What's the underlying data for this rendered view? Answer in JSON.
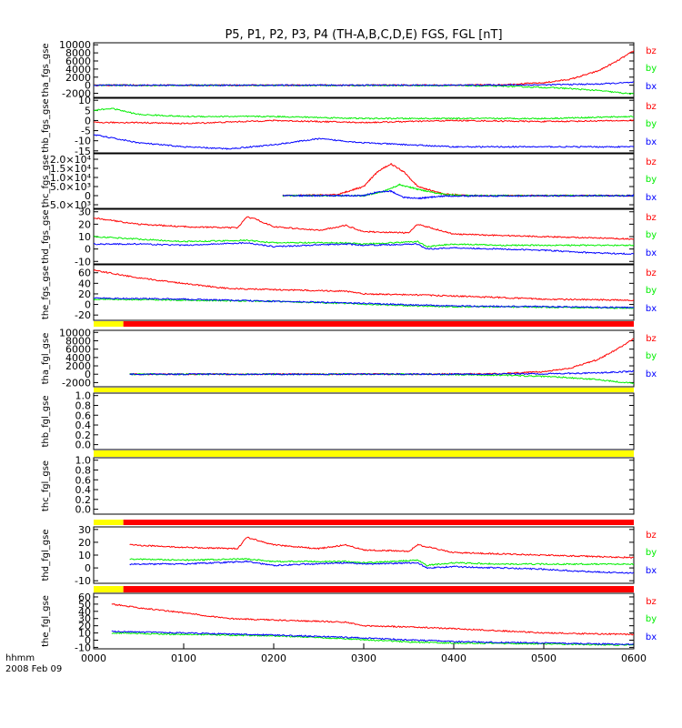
{
  "title": "P5, P1, P2, P3, P4 (TH-A,B,C,D,E) FGS, FGL [nT]",
  "x_axis": {
    "ticks": [
      "0000",
      "0100",
      "0200",
      "0300",
      "0400",
      "0500",
      "0600"
    ],
    "unit_label": "hhmm",
    "date_label": "2008 Feb 09"
  },
  "colors": {
    "bz": "#ff0000",
    "by": "#00ee00",
    "bx": "#0000ff",
    "bt": "#7700aa",
    "flag_yellow": "#ffff00",
    "flag_red": "#ff0000"
  },
  "chart_data": [
    {
      "type": "line",
      "ylabel": "tha_fgs_gse",
      "ylim": [
        -3000,
        10500
      ],
      "yticks": [
        "10000",
        "8000",
        "6000",
        "4000",
        "2000",
        "0",
        "-2000"
      ],
      "legend": [
        "bz",
        "by",
        "bx"
      ],
      "x_start_hours": 0.0,
      "series": [
        {
          "name": "bz",
          "t": [
            0,
            4.0,
            4.5,
            5.0,
            5.3,
            5.6,
            5.8,
            6.0
          ],
          "v": [
            0,
            20,
            120,
            600,
            1500,
            3500,
            5800,
            8500
          ]
        },
        {
          "name": "by",
          "t": [
            0,
            4.0,
            4.6,
            5.2,
            5.6,
            6.0
          ],
          "v": [
            0,
            -60,
            -250,
            -700,
            -1300,
            -2200
          ]
        },
        {
          "name": "bx",
          "t": [
            0,
            4.0,
            5.0,
            5.6,
            6.0
          ],
          "v": [
            0,
            10,
            100,
            300,
            700
          ]
        }
      ]
    },
    {
      "type": "line",
      "ylabel": "thb_fgs_gse",
      "ylim": [
        -16,
        11
      ],
      "yticks": [
        "10",
        "5",
        "0",
        "-5",
        "-10",
        "-15"
      ],
      "legend": [
        "bz",
        "by",
        "bx"
      ],
      "x_start_hours": 0.0,
      "series": [
        {
          "name": "bz",
          "t": [
            0,
            0.5,
            1.0,
            2.0,
            3.0,
            4.0,
            5.0,
            6.0
          ],
          "v": [
            -1,
            -1,
            -1.5,
            0,
            -1,
            0,
            -0.5,
            0
          ]
        },
        {
          "name": "by",
          "t": [
            0,
            0.2,
            0.5,
            1.0,
            2.0,
            3.0,
            4.0,
            5.0,
            6.0
          ],
          "v": [
            5,
            6,
            3,
            2,
            2,
            1,
            1,
            1,
            2
          ]
        },
        {
          "name": "bx",
          "t": [
            0,
            0.5,
            1.0,
            1.5,
            2.0,
            2.5,
            3.0,
            4.0,
            5.0,
            6.0
          ],
          "v": [
            -7,
            -11,
            -13,
            -14,
            -12,
            -9,
            -11,
            -13,
            -13,
            -13
          ]
        }
      ]
    },
    {
      "type": "line",
      "ylabel": "thc_fgs_gse",
      "ylim": [
        -7000,
        23000
      ],
      "yticks": [
        "2.0×10⁴",
        "1.5×10⁴",
        "1.0×10⁴",
        "5.0×10³",
        "0",
        "-5.0×10³"
      ],
      "legend": [
        "bz",
        "by",
        "bx"
      ],
      "x_start_hours": 2.1,
      "series": [
        {
          "name": "bz",
          "t": [
            2.1,
            2.7,
            3.0,
            3.15,
            3.3,
            3.45,
            3.6,
            3.9,
            4.2,
            6.0
          ],
          "v": [
            0,
            500,
            5000,
            13000,
            17500,
            13000,
            5000,
            800,
            0,
            0
          ]
        },
        {
          "name": "by",
          "t": [
            2.1,
            3.0,
            3.2,
            3.4,
            3.6,
            3.9,
            4.2,
            6.0
          ],
          "v": [
            0,
            0,
            2000,
            6000,
            3500,
            600,
            0,
            0
          ]
        },
        {
          "name": "bx",
          "t": [
            2.1,
            3.0,
            3.15,
            3.3,
            3.45,
            3.6,
            3.9,
            6.0
          ],
          "v": [
            0,
            0,
            2000,
            2500,
            -1000,
            -1500,
            -200,
            0
          ]
        }
      ]
    },
    {
      "type": "line",
      "ylabel": "thd_fgs_gse",
      "ylim": [
        -12,
        32
      ],
      "yticks": [
        "30",
        "20",
        "10",
        "0",
        "-10"
      ],
      "legend": [
        "bz",
        "by",
        "bx"
      ],
      "x_start_hours": 0.0,
      "series": [
        {
          "name": "bz",
          "t": [
            0,
            0.5,
            1.0,
            1.6,
            1.7,
            1.8,
            2.0,
            2.5,
            2.8,
            3.0,
            3.5,
            3.6,
            4.0,
            4.5,
            5.0,
            5.5,
            6.0
          ],
          "v": [
            25,
            20,
            18,
            17,
            26,
            24,
            18,
            15,
            19,
            14,
            13,
            20,
            12,
            11,
            10,
            9,
            8
          ]
        },
        {
          "name": "by",
          "t": [
            0,
            0.5,
            1.0,
            1.7,
            2.0,
            2.8,
            3.0,
            3.6,
            3.7,
            4.0,
            4.5,
            5.0,
            6.0
          ],
          "v": [
            10,
            8,
            6,
            7,
            5,
            5,
            4,
            6,
            2,
            4,
            3,
            3,
            3
          ]
        },
        {
          "name": "bx",
          "t": [
            0,
            0.5,
            1.0,
            1.7,
            2.0,
            2.8,
            3.0,
            3.6,
            3.7,
            4.0,
            4.5,
            5.0,
            5.5,
            6.0
          ],
          "v": [
            4,
            4,
            3,
            5,
            2,
            4,
            3,
            4,
            0,
            1,
            0,
            -1,
            -3,
            -4
          ]
        }
      ]
    },
    {
      "type": "line",
      "ylabel": "the_fgs_gse",
      "ylim": [
        -30,
        75
      ],
      "yticks": [
        "60",
        "40",
        "20",
        "0",
        "-20"
      ],
      "legend": [
        "bz",
        "by",
        "bx"
      ],
      "x_start_hours": 0.0,
      "series": [
        {
          "name": "bz",
          "t": [
            0,
            0.5,
            1.0,
            1.5,
            2.0,
            2.8,
            3.0,
            3.6,
            4.0,
            4.7,
            5.0,
            6.0
          ],
          "v": [
            65,
            50,
            40,
            30,
            28,
            25,
            20,
            18,
            16,
            12,
            10,
            8
          ]
        },
        {
          "name": "by",
          "t": [
            0,
            1.0,
            2.0,
            2.8,
            3.6,
            4.0,
            5.0,
            6.0
          ],
          "v": [
            10,
            8,
            6,
            2,
            -3,
            -4,
            -5,
            -7
          ]
        },
        {
          "name": "bx",
          "t": [
            0,
            1.0,
            2.0,
            2.8,
            3.6,
            4.0,
            5.0,
            6.0
          ],
          "v": [
            12,
            10,
            6,
            3,
            -1,
            -3,
            -4,
            -6
          ]
        }
      ]
    },
    {
      "type": "line",
      "ylabel": "tha_fgl_gse",
      "ylim": [
        -3000,
        10500
      ],
      "yticks": [
        "10000",
        "8000",
        "6000",
        "4000",
        "2000",
        "0",
        "-2000"
      ],
      "legend": [
        "bz",
        "by",
        "bx"
      ],
      "x_start_hours": 0.4,
      "series": [
        {
          "name": "bz",
          "t": [
            0.4,
            4.0,
            4.5,
            5.0,
            5.3,
            5.6,
            5.8,
            6.0
          ],
          "v": [
            0,
            20,
            120,
            600,
            1500,
            3500,
            5800,
            8500
          ]
        },
        {
          "name": "by",
          "t": [
            3.6,
            4.6,
            5.2,
            5.6,
            6.0
          ],
          "v": [
            0,
            -250,
            -700,
            -1300,
            -2200
          ]
        },
        {
          "name": "bx",
          "t": [
            3.6,
            5.0,
            5.6,
            6.0
          ],
          "v": [
            0,
            100,
            300,
            700
          ]
        }
      ]
    },
    {
      "type": "line",
      "ylabel": "thb_fgl_gse",
      "ylim": [
        -0.1,
        1.05
      ],
      "yticks": [
        "1.0",
        "0.8",
        "0.6",
        "0.4",
        "0.2",
        "0.0"
      ],
      "legend": [],
      "series": []
    },
    {
      "type": "line",
      "ylabel": "thc_fgl_gse",
      "ylim": [
        -0.1,
        1.05
      ],
      "yticks": [
        "1.0",
        "0.8",
        "0.6",
        "0.4",
        "0.2",
        "0.0"
      ],
      "legend": [],
      "series": []
    },
    {
      "type": "line",
      "ylabel": "thd_fgl_gse",
      "ylim": [
        -12,
        32
      ],
      "yticks": [
        "30",
        "20",
        "10",
        "0",
        "-10"
      ],
      "legend": [
        "bz",
        "by",
        "bx"
      ],
      "x_start_hours": 0.4,
      "series": [
        {
          "name": "bz",
          "t": [
            0.4,
            1.0,
            1.6,
            1.7,
            1.8,
            2.0,
            2.5,
            2.8,
            3.0,
            3.5,
            3.6,
            4.0,
            4.5,
            5.0,
            5.5,
            6.0
          ],
          "v": [
            18,
            16,
            15,
            24,
            22,
            18,
            15,
            18,
            14,
            13,
            18,
            12,
            11,
            10,
            9,
            8
          ]
        },
        {
          "name": "by",
          "t": [
            0.4,
            1.0,
            1.7,
            2.0,
            2.8,
            3.0,
            3.6,
            3.7,
            4.0,
            4.5,
            5.0,
            6.0
          ],
          "v": [
            7,
            6,
            7,
            5,
            5,
            4,
            6,
            2,
            4,
            3,
            3,
            3
          ]
        },
        {
          "name": "bx",
          "t": [
            0.4,
            1.0,
            1.7,
            2.0,
            2.8,
            3.0,
            3.6,
            3.7,
            4.0,
            4.5,
            5.0,
            5.5,
            6.0
          ],
          "v": [
            3,
            3,
            5,
            2,
            4,
            3,
            4,
            0,
            1,
            0,
            -1,
            -3,
            -4
          ]
        }
      ]
    },
    {
      "type": "line",
      "ylabel": "the_fgl_gse",
      "ylim": [
        -12,
        65
      ],
      "yticks": [
        "60",
        "50",
        "40",
        "30",
        "20",
        "10",
        "0",
        "-10"
      ],
      "legend": [
        "bz",
        "by",
        "bx"
      ],
      "x_start_hours": 0.2,
      "series": [
        {
          "name": "bz",
          "t": [
            0.2,
            0.5,
            1.0,
            1.5,
            2.0,
            2.8,
            3.0,
            3.6,
            4.0,
            4.7,
            5.0,
            6.0
          ],
          "v": [
            50,
            45,
            38,
            30,
            28,
            25,
            20,
            18,
            16,
            12,
            10,
            8
          ]
        },
        {
          "name": "by",
          "t": [
            0.2,
            1.0,
            2.0,
            2.8,
            3.6,
            4.0,
            5.0,
            6.0
          ],
          "v": [
            10,
            8,
            6,
            2,
            -3,
            -4,
            -5,
            -7
          ]
        },
        {
          "name": "bx",
          "t": [
            0.2,
            1.0,
            2.0,
            2.8,
            3.6,
            4.0,
            5.0,
            6.0
          ],
          "v": [
            12,
            10,
            7,
            4,
            0,
            -2,
            -4,
            -6
          ]
        }
      ]
    }
  ],
  "flag_bars": [
    {
      "yellow_until_hours": 0.33,
      "red_from_hours": 0.33
    },
    {
      "yellow_all": true
    },
    {
      "yellow_all": true
    },
    {
      "yellow_until_hours": 0.33,
      "red_from_hours": 0.33
    },
    {
      "yellow_until_hours": 0.33,
      "red_from_hours": 0.33
    }
  ]
}
